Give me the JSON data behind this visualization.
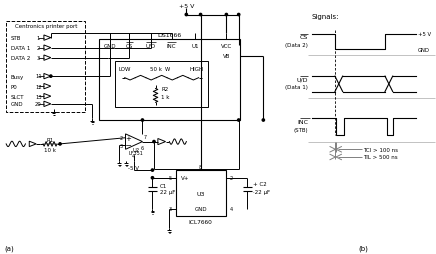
{
  "bg_color": "#ffffff",
  "line_color": "#000000",
  "gray_color": "#808080",
  "fig_width": 5.67,
  "fig_height": 3.31,
  "label_a": "(a)",
  "label_b": "(b)",
  "label_signals": "Signals:",
  "label_cs2": "(Data 2)",
  "label_uid2": "(Data 1)",
  "label_inc2": "(STB)",
  "label_5v_right": "+5 V",
  "label_gnd_right": "GND",
  "label_tci": "TCI > 100 ns",
  "label_til": "TIL > 500 ns",
  "label_5v_top": "+5 V",
  "label_ds1666": "DS1666",
  "label_gnd_ic": "GND",
  "label_cs_ic": "CS",
  "label_uid_ic": "U/D",
  "label_inc_ic": "INC",
  "label_u1": "U1",
  "label_vcc": "VCC",
  "label_vb": "VB",
  "label_low": "LOW",
  "label_high": "HIGH",
  "label_50k": "50 k",
  "label_w": "W",
  "label_r2": "R2",
  "label_1k": "1 k",
  "label_u2": "U2",
  "label_lf351": "LF351",
  "label_r1": "R1",
  "label_10k": "10 k",
  "label_minus5v": "-5 V",
  "label_c1": "C1",
  "label_22uf1": "22 μF",
  "label_u3": "U3",
  "label_icl7660": "ICL7660",
  "label_vplus": "V+",
  "label_gnd_u3": "GND",
  "label_c2": "+ C2",
  "label_22uf2": "·22 μF",
  "label_centronics": "Centronics printer port",
  "label_stb": "STB",
  "label_data1": "DATA 1",
  "label_data2": "DATA 2",
  "label_busy": "Busy",
  "label_p0": "P0",
  "label_slct": "SLCT",
  "label_gnd_port": "GND"
}
